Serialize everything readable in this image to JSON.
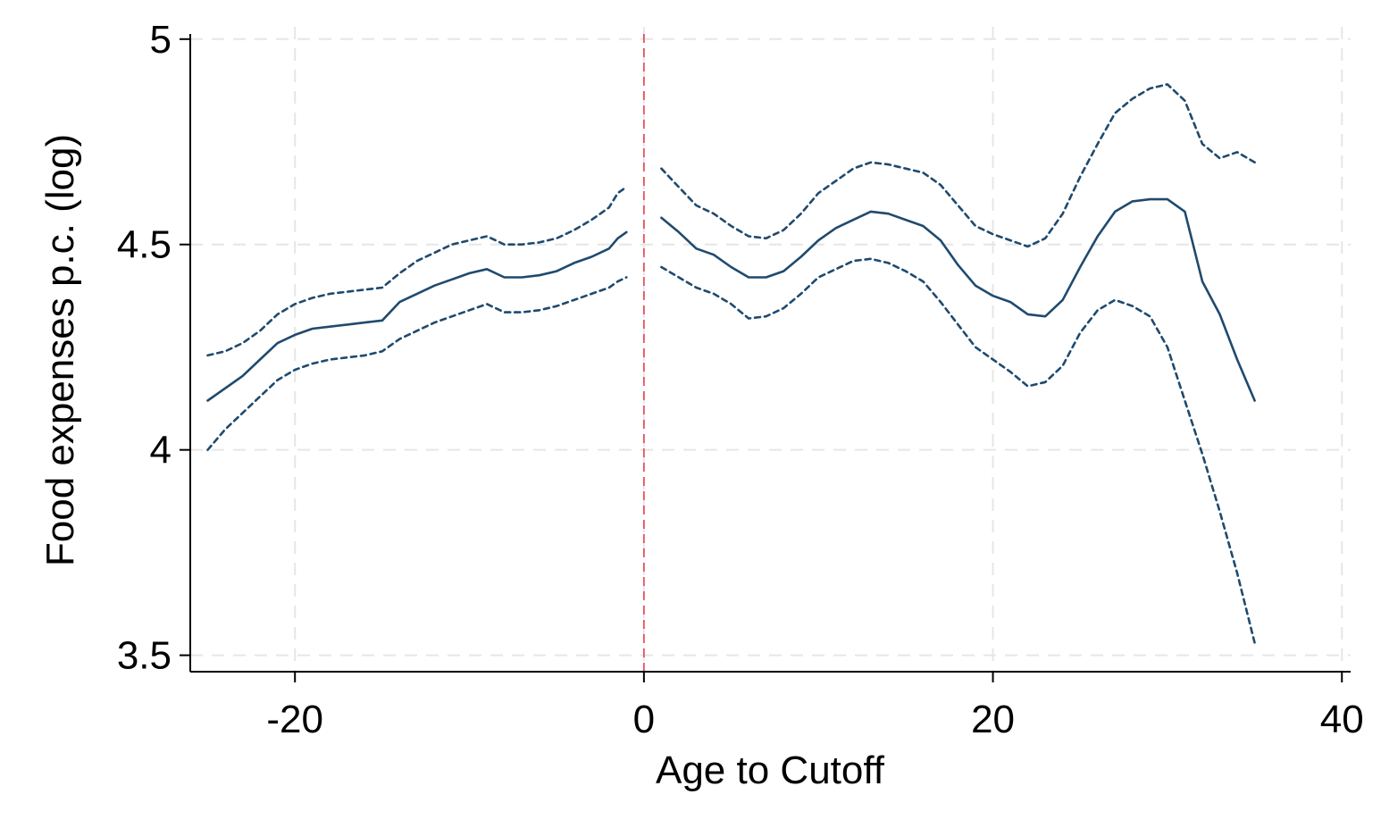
{
  "chart_data": {
    "type": "line",
    "title": "",
    "xlabel": "Age to Cutoff",
    "ylabel": "Food expenses p.c. (log)",
    "xlim": [
      -26,
      40.5
    ],
    "ylim": [
      3.46,
      5.03
    ],
    "x_ticks": [
      {
        "value": -20,
        "label": "-20"
      },
      {
        "value": 0,
        "label": "0"
      },
      {
        "value": 20,
        "label": "20"
      },
      {
        "value": 40,
        "label": "40"
      }
    ],
    "y_ticks": [
      {
        "value": 3.5,
        "label": "3.5"
      },
      {
        "value": 4,
        "label": "4"
      },
      {
        "value": 4.5,
        "label": "4.5"
      },
      {
        "value": 5,
        "label": "5"
      }
    ],
    "grid": true,
    "cutoff_line": {
      "x": 0,
      "color": "#e8424a"
    },
    "colors": {
      "series": "#1f4a6e",
      "cutoff": "#e8424a",
      "grid": "#e6e6e6"
    },
    "series": [
      {
        "role": "estimate-left",
        "style": "solid",
        "x": [
          -25,
          -24,
          -23,
          -22,
          -21,
          -20,
          -19,
          -18,
          -17,
          -16,
          -15,
          -14,
          -13,
          -12,
          -11,
          -10,
          -9,
          -8,
          -7,
          -6,
          -5,
          -4,
          -3,
          -2,
          -1.5,
          -1
        ],
        "y": [
          4.12,
          4.15,
          4.18,
          4.22,
          4.26,
          4.28,
          4.295,
          4.3,
          4.305,
          4.31,
          4.315,
          4.36,
          4.38,
          4.4,
          4.415,
          4.43,
          4.44,
          4.42,
          4.42,
          4.425,
          4.435,
          4.455,
          4.47,
          4.49,
          4.515,
          4.53
        ]
      },
      {
        "role": "upper-left",
        "style": "dashed",
        "x": [
          -25,
          -24,
          -23,
          -22,
          -21,
          -20,
          -19,
          -18,
          -17,
          -16,
          -15,
          -14,
          -13,
          -12,
          -11,
          -10,
          -9,
          -8,
          -7,
          -6,
          -5,
          -4,
          -3,
          -2,
          -1.5,
          -1
        ],
        "y": [
          4.23,
          4.24,
          4.26,
          4.29,
          4.33,
          4.355,
          4.37,
          4.38,
          4.385,
          4.39,
          4.395,
          4.43,
          4.46,
          4.48,
          4.5,
          4.51,
          4.52,
          4.5,
          4.5,
          4.505,
          4.515,
          4.535,
          4.56,
          4.59,
          4.625,
          4.64
        ]
      },
      {
        "role": "lower-left",
        "style": "dashed",
        "x": [
          -25,
          -24,
          -23,
          -22,
          -21,
          -20,
          -19,
          -18,
          -17,
          -16,
          -15,
          -14,
          -13,
          -12,
          -11,
          -10,
          -9,
          -8,
          -7,
          -6,
          -5,
          -4,
          -3,
          -2,
          -1.5,
          -1
        ],
        "y": [
          4.0,
          4.05,
          4.09,
          4.13,
          4.17,
          4.195,
          4.21,
          4.22,
          4.225,
          4.23,
          4.24,
          4.27,
          4.29,
          4.31,
          4.325,
          4.34,
          4.355,
          4.335,
          4.335,
          4.34,
          4.35,
          4.365,
          4.38,
          4.395,
          4.41,
          4.42
        ]
      },
      {
        "role": "estimate-right",
        "style": "solid",
        "x": [
          1,
          2,
          3,
          4,
          5,
          6,
          7,
          8,
          9,
          10,
          11,
          12,
          13,
          14,
          15,
          16,
          17,
          18,
          19,
          20,
          21,
          22,
          23,
          24,
          25,
          26,
          27,
          28,
          29,
          30,
          31,
          32,
          33,
          34,
          35
        ],
        "y": [
          4.565,
          4.53,
          4.49,
          4.475,
          4.445,
          4.42,
          4.42,
          4.435,
          4.47,
          4.51,
          4.54,
          4.56,
          4.58,
          4.575,
          4.56,
          4.545,
          4.51,
          4.45,
          4.4,
          4.375,
          4.36,
          4.33,
          4.325,
          4.365,
          4.445,
          4.52,
          4.58,
          4.605,
          4.61,
          4.61,
          4.58,
          4.41,
          4.33,
          4.22,
          4.12
        ]
      },
      {
        "role": "upper-right",
        "style": "dashed",
        "x": [
          1,
          2,
          3,
          4,
          5,
          6,
          7,
          8,
          9,
          10,
          11,
          12,
          13,
          14,
          15,
          16,
          17,
          18,
          19,
          20,
          21,
          22,
          23,
          24,
          25,
          26,
          27,
          28,
          29,
          30,
          31,
          32,
          33,
          34,
          35
        ],
        "y": [
          4.685,
          4.64,
          4.595,
          4.575,
          4.545,
          4.52,
          4.515,
          4.535,
          4.575,
          4.625,
          4.655,
          4.685,
          4.7,
          4.695,
          4.685,
          4.675,
          4.645,
          4.595,
          4.545,
          4.525,
          4.51,
          4.495,
          4.515,
          4.575,
          4.665,
          4.745,
          4.82,
          4.855,
          4.88,
          4.89,
          4.85,
          4.745,
          4.71,
          4.725,
          4.7
        ]
      },
      {
        "role": "lower-right",
        "style": "dashed",
        "x": [
          1,
          2,
          3,
          4,
          5,
          6,
          7,
          8,
          9,
          10,
          11,
          12,
          13,
          14,
          15,
          16,
          17,
          18,
          19,
          20,
          21,
          22,
          23,
          24,
          25,
          26,
          27,
          28,
          29,
          30,
          31,
          32,
          33,
          34,
          35
        ],
        "y": [
          4.445,
          4.42,
          4.395,
          4.38,
          4.355,
          4.32,
          4.325,
          4.345,
          4.38,
          4.42,
          4.44,
          4.46,
          4.465,
          4.455,
          4.435,
          4.41,
          4.36,
          4.305,
          4.25,
          4.22,
          4.19,
          4.155,
          4.165,
          4.205,
          4.285,
          4.34,
          4.365,
          4.35,
          4.325,
          4.25,
          4.12,
          3.99,
          3.85,
          3.7,
          3.53
        ]
      }
    ]
  }
}
